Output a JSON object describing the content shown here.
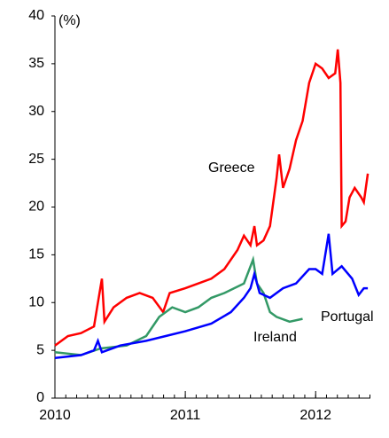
{
  "chart_data": {
    "type": "line",
    "y_label": "(%)",
    "xlim": [
      2010,
      2012.42
    ],
    "xticks": [
      2010,
      2011,
      2012
    ],
    "ylim": [
      0,
      40
    ],
    "yticks": [
      0,
      5,
      10,
      15,
      20,
      25,
      30,
      35,
      40
    ],
    "series": [
      {
        "name": "Greece",
        "color": "#ff0000",
        "x": [
          2010.0,
          2010.1,
          2010.2,
          2010.3,
          2010.33,
          2010.36,
          2010.38,
          2010.45,
          2010.55,
          2010.65,
          2010.75,
          2010.83,
          2010.88,
          2011.0,
          2011.1,
          2011.2,
          2011.3,
          2011.4,
          2011.45,
          2011.5,
          2011.53,
          2011.55,
          2011.6,
          2011.65,
          2011.7,
          2011.72,
          2011.75,
          2011.8,
          2011.85,
          2011.9,
          2011.95,
          2012.0,
          2012.05,
          2012.1,
          2012.15,
          2012.17,
          2012.19,
          2012.2,
          2012.23,
          2012.26,
          2012.3,
          2012.35,
          2012.37,
          2012.4
        ],
        "values": [
          5.5,
          6.5,
          6.8,
          7.5,
          10,
          12.5,
          8,
          9.5,
          10.5,
          11,
          10.5,
          9,
          11,
          11.5,
          12,
          12.5,
          13.5,
          15.5,
          17,
          16,
          18,
          16,
          16.5,
          18,
          23,
          25.5,
          22,
          24,
          27,
          29,
          33,
          35,
          34.5,
          33.5,
          34,
          36.5,
          33,
          18,
          18.5,
          21,
          22,
          21,
          20.5,
          23.5
        ]
      },
      {
        "name": "Ireland",
        "color": "#339966",
        "x": [
          2010.0,
          2010.2,
          2010.35,
          2010.55,
          2010.7,
          2010.8,
          2010.9,
          2011.0,
          2011.1,
          2011.2,
          2011.3,
          2011.45,
          2011.52,
          2011.55,
          2011.6,
          2011.65,
          2011.7,
          2011.8,
          2011.9
        ],
        "values": [
          4.8,
          4.5,
          5.2,
          5.5,
          6.5,
          8.5,
          9.5,
          9,
          9.5,
          10.5,
          11,
          12,
          14.5,
          12,
          11,
          9,
          8.5,
          8,
          8.3
        ]
      },
      {
        "name": "Portugal",
        "color": "#0000ff",
        "x": [
          2010.0,
          2010.2,
          2010.3,
          2010.33,
          2010.36,
          2010.5,
          2010.7,
          2010.85,
          2011.0,
          2011.2,
          2011.35,
          2011.45,
          2011.5,
          2011.53,
          2011.57,
          2011.65,
          2011.75,
          2011.85,
          2011.95,
          2012.0,
          2012.05,
          2012.1,
          2012.13,
          2012.2,
          2012.28,
          2012.33,
          2012.37,
          2012.4
        ],
        "values": [
          4.2,
          4.5,
          5,
          6,
          4.8,
          5.5,
          6,
          6.5,
          7,
          7.8,
          9,
          10.5,
          11.5,
          13,
          11,
          10.5,
          11.5,
          12,
          13.5,
          13.5,
          13,
          17.2,
          13,
          13.8,
          12.5,
          10.8,
          11.5,
          11.5
        ]
      }
    ]
  }
}
